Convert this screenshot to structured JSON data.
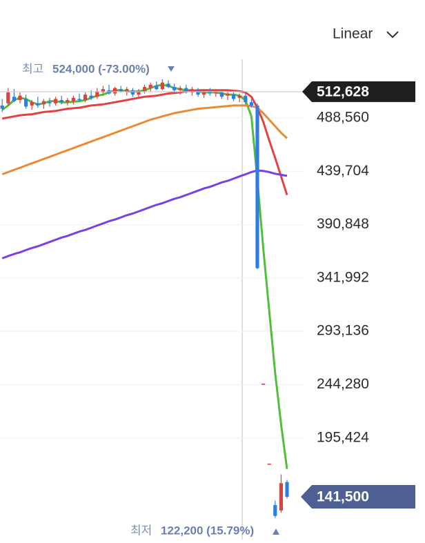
{
  "chart_data": {
    "type": "candlestick",
    "scale_button": "Linear",
    "ylim": [
      102340,
      596650
    ],
    "yticks": [
      {
        "value": 488560,
        "label": "488,560"
      },
      {
        "value": 439704,
        "label": "439,704"
      },
      {
        "value": 390848,
        "label": "390,848"
      },
      {
        "value": 341992,
        "label": "341,992"
      },
      {
        "value": 293136,
        "label": "293,136"
      },
      {
        "value": 244280,
        "label": "244,280"
      },
      {
        "value": 195424,
        "label": "195,424"
      }
    ],
    "grid": true,
    "up_color": "#e0403f",
    "down_color": "#2f7de1",
    "candles": {
      "open": [
        500000,
        502000,
        508000,
        505000,
        506000,
        500000,
        502000,
        501000,
        503000,
        502000,
        505000,
        503000,
        504000,
        506000,
        505000,
        509000,
        508000,
        512000,
        514000,
        511000,
        515000,
        513000,
        514000,
        510000,
        513000,
        516000,
        518000,
        515000,
        520000,
        517000,
        514000,
        516000,
        512000,
        514000,
        510000,
        513000,
        511000,
        512000,
        509000,
        510000,
        507000,
        509000,
        503000,
        500000,
        245200,
        171900,
        134000,
        129000,
        155000
      ],
      "high": [
        506000,
        516000,
        515000,
        512000,
        510000,
        505000,
        508000,
        506000,
        507000,
        508000,
        509000,
        507000,
        509000,
        511000,
        512000,
        514000,
        516000,
        518000,
        519000,
        517000,
        518000,
        517000,
        516000,
        515000,
        519000,
        521000,
        522000,
        524000,
        523000,
        520000,
        518000,
        519000,
        517000,
        516000,
        515000,
        516000,
        515000,
        514000,
        513000,
        512000,
        511000,
        512000,
        506000,
        502000,
        245200,
        171900,
        138000,
        162000,
        157000
      ],
      "low": [
        494000,
        500000,
        503000,
        502000,
        497000,
        496000,
        498000,
        497000,
        499000,
        500000,
        501000,
        500000,
        501000,
        503000,
        503000,
        505000,
        506000,
        509000,
        510000,
        509000,
        512000,
        509000,
        508000,
        507000,
        511000,
        513000,
        514000,
        514000,
        516000,
        512000,
        510000,
        511000,
        509000,
        508000,
        507000,
        509000,
        508000,
        506000,
        505000,
        504000,
        503000,
        501000,
        498000,
        350000,
        245200,
        171900,
        122200,
        127000,
        140000
      ],
      "close": [
        497000,
        512000,
        504000,
        509000,
        499000,
        503000,
        500000,
        504000,
        502000,
        506000,
        503000,
        505000,
        507000,
        505000,
        510000,
        507000,
        513000,
        515000,
        511000,
        516000,
        513000,
        515000,
        510000,
        513000,
        517000,
        519000,
        515000,
        521000,
        517000,
        514000,
        516000,
        512000,
        515000,
        510000,
        513000,
        511000,
        513000,
        508000,
        511000,
        506000,
        509000,
        503000,
        500000,
        351000,
        245200,
        171900,
        124000,
        154000,
        141500
      ]
    },
    "series": [
      {
        "color": "#4fbf3a",
        "values": [
          496000,
          500000,
          505000,
          507000,
          506000,
          503000,
          501000,
          502000,
          504000,
          504000,
          503000,
          503000,
          503500,
          504000,
          505000,
          507000,
          509000,
          510000,
          512000,
          514000,
          514000,
          513000,
          512500,
          513000,
          514000,
          516000,
          518000,
          519000,
          518000,
          516000,
          515000,
          514000,
          514000,
          513000,
          512000,
          512000,
          512000,
          511000,
          510000,
          510000,
          509000,
          505000,
          490000,
          432000,
          369000,
          312000,
          255000,
          208000,
          167000
        ]
      },
      {
        "color": "#e34141",
        "values": [
          488000,
          489000,
          490000,
          491000,
          491500,
          492000,
          493000,
          494000,
          494500,
          495000,
          496000,
          497000,
          497500,
          498000,
          499000,
          500000,
          500500,
          501000,
          502000,
          503000,
          504000,
          505000,
          506000,
          507000,
          508000,
          508500,
          509000,
          510000,
          511000,
          511500,
          512000,
          513000,
          513500,
          514000,
          514000,
          514000,
          514000,
          514000,
          514000,
          513500,
          513000,
          512000,
          508000,
          498000,
          485000,
          468000,
          452000,
          435000,
          418000
        ]
      },
      {
        "color": "#ea8a35",
        "values": [
          437000,
          439000,
          441000,
          443000,
          445000,
          447000,
          449000,
          451000,
          453000,
          455000,
          457000,
          459000,
          461000,
          463000,
          465000,
          467000,
          469000,
          471000,
          473000,
          475000,
          477000,
          479000,
          481000,
          483000,
          485000,
          487000,
          488500,
          490000,
          491500,
          493000,
          494000,
          495000,
          496000,
          497000,
          497500,
          498000,
          498500,
          499000,
          499500,
          500000,
          500000,
          500000,
          499500,
          498000,
          493000,
          487000,
          481000,
          475000,
          470000
        ]
      },
      {
        "color": "#7c3ee6",
        "values": [
          360000,
          362000,
          364000,
          365500,
          367500,
          369500,
          371000,
          373000,
          375000,
          377000,
          379000,
          380500,
          382500,
          384500,
          386000,
          388000,
          390000,
          392000,
          394000,
          395500,
          397500,
          399500,
          401000,
          403000,
          405000,
          407000,
          409000,
          410500,
          412500,
          414500,
          416000,
          418000,
          420000,
          422000,
          424000,
          425500,
          427500,
          429500,
          431000,
          433000,
          435000,
          437000,
          439000,
          440500,
          440000,
          439000,
          437500,
          436500,
          435500
        ]
      }
    ],
    "high_marker": {
      "label": "최고",
      "value": 524000,
      "text": "524,000 (-73.00%)"
    },
    "low_marker": {
      "label": "최저",
      "value": 122200,
      "text": "122,200 (15.79%)"
    },
    "crosshair": {
      "value": 512628,
      "label": "512,628"
    },
    "last_price": {
      "value": 141500,
      "label": "141,500",
      "color": "#4e5f94"
    }
  }
}
